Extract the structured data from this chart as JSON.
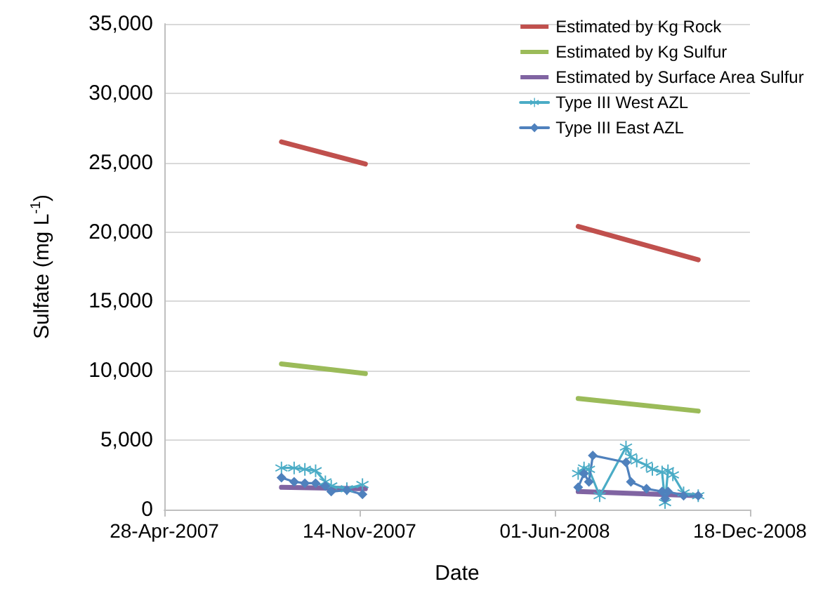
{
  "chart_data": {
    "type": "line",
    "xlabel": "Date",
    "ylabel": "Sulfate (mg L$^{-1}$)",
    "xlim": [
      "2007-04-28",
      "2008-12-18"
    ],
    "xticks": [
      {
        "value": "2007-04-28",
        "label": "28-Apr-2007"
      },
      {
        "value": "2007-11-14",
        "label": "14-Nov-2007"
      },
      {
        "value": "2008-06-01",
        "label": "01-Jun-2008"
      },
      {
        "value": "2008-12-18",
        "label": "18-Dec-2008"
      }
    ],
    "ylim": [
      0,
      35000
    ],
    "yticks": [
      0,
      {
        "value": 5000,
        "label": "5,000"
      },
      {
        "value": 10000,
        "label": "10,000"
      },
      {
        "value": 15000,
        "label": "15,000"
      },
      {
        "value": 20000,
        "label": "20,000"
      },
      {
        "value": 25000,
        "label": "25,000"
      },
      {
        "value": 30000,
        "label": "30,000"
      },
      {
        "value": 35000,
        "label": "35,000"
      }
    ],
    "grid": "y",
    "legend": "top right",
    "series": [
      {
        "name": "Estimated by Kg Rock",
        "color": "#c0504d",
        "marker": "none",
        "x": [
          "2007-08-26",
          "2007-11-20",
          "2008-02-01",
          "2008-06-25",
          "2008-10-26"
        ],
        "values": [
          26500,
          24900,
          null,
          20400,
          18000
        ]
      },
      {
        "name": "Estimated by Kg Sulfur",
        "color": "#9bbb59",
        "marker": "none",
        "x": [
          "2007-08-26",
          "2007-11-20",
          "2008-02-01",
          "2008-06-25",
          "2008-10-26"
        ],
        "values": [
          10500,
          9800,
          null,
          8000,
          7100
        ]
      },
      {
        "name": "Estimated by Surface Area Sulfur",
        "color": "#8064a2",
        "marker": "none",
        "x": [
          "2007-08-26",
          "2007-11-20",
          "2008-02-01",
          "2008-06-25",
          "2008-10-26"
        ],
        "values": [
          1600,
          1500,
          null,
          1300,
          1000
        ]
      },
      {
        "name": "Type III West AZL",
        "color": "#4bacc6",
        "marker": "cross",
        "x": [
          "2007-08-26",
          "2007-09-08",
          "2007-09-19",
          "2007-09-30",
          "2007-10-10",
          "2007-10-16",
          "2007-11-01",
          "2007-11-17",
          "2008-02-01",
          "2008-06-25",
          "2008-07-01",
          "2008-07-06",
          "2008-07-17",
          "2008-08-13",
          "2008-08-18",
          "2008-08-24",
          "2008-09-03",
          "2008-09-09",
          "2008-09-19",
          "2008-09-22",
          "2008-09-25",
          "2008-09-30",
          "2008-10-11",
          "2008-10-26"
        ],
        "values": [
          3000,
          3000,
          2900,
          2800,
          2000,
          1700,
          1500,
          1800,
          null,
          2600,
          3000,
          2900,
          1000,
          4500,
          3800,
          3500,
          3200,
          2900,
          2700,
          500,
          2800,
          2500,
          1200,
          1000
        ]
      },
      {
        "name": "Type III East AZL",
        "color": "#4f81bd",
        "marker": "diamond",
        "x": [
          "2007-08-26",
          "2007-09-08",
          "2007-09-19",
          "2007-09-30",
          "2007-10-10",
          "2007-10-16",
          "2007-11-01",
          "2007-11-17",
          "2008-02-01",
          "2008-06-25",
          "2008-07-01",
          "2008-07-06",
          "2008-07-10",
          "2008-08-13",
          "2008-08-18",
          "2008-09-03",
          "2008-09-19",
          "2008-09-22",
          "2008-09-25",
          "2008-10-11",
          "2008-10-26"
        ],
        "values": [
          2300,
          2000,
          1900,
          1900,
          1700,
          1300,
          1400,
          1100,
          null,
          1600,
          2600,
          2000,
          3900,
          3400,
          2000,
          1500,
          1300,
          800,
          1300,
          1000,
          1000
        ]
      }
    ]
  }
}
